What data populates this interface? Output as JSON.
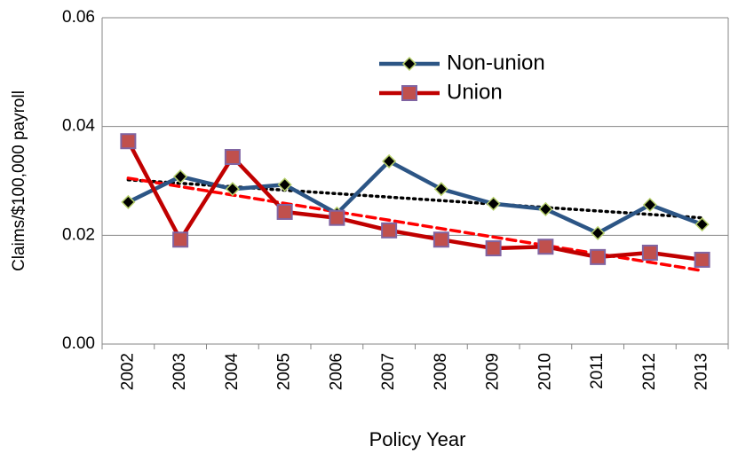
{
  "chart_data": {
    "type": "line",
    "x_label": "Policy Year",
    "y_label": "Claims/$100,000 payroll",
    "categories": [
      "2002",
      "2003",
      "2004",
      "2005",
      "2006",
      "2007",
      "2008",
      "2009",
      "2010",
      "2011",
      "2012",
      "2013"
    ],
    "series": [
      {
        "name": "Non-union",
        "color": "#2c5585",
        "marker": "diamond",
        "marker_fill": "#000000",
        "marker_stroke": "#b5cf6a",
        "values": [
          0.0261,
          0.0308,
          0.0285,
          0.0293,
          0.024,
          0.0336,
          0.0285,
          0.0258,
          0.0248,
          0.0204,
          0.0256,
          0.022
        ],
        "trend": [
          0.0302,
          0.0232
        ],
        "trend_color": "#000000",
        "trend_style": "dotted"
      },
      {
        "name": "Union",
        "color": "#c00000",
        "marker": "square",
        "marker_fill": "#c0504d",
        "marker_stroke": "#8064a2",
        "values": [
          0.0373,
          0.0192,
          0.0344,
          0.0243,
          0.0232,
          0.0209,
          0.0192,
          0.0176,
          0.0179,
          0.016,
          0.0168,
          0.0155
        ],
        "trend": [
          0.0305,
          0.0135
        ],
        "trend_color": "#ff0000",
        "trend_style": "dashed"
      }
    ],
    "ylim": [
      0,
      0.06
    ],
    "yticks": [
      {
        "value": 0,
        "label": "0.00"
      },
      {
        "value": 0.02,
        "label": "0.02"
      },
      {
        "value": 0.04,
        "label": "0.04"
      },
      {
        "value": 0.06,
        "label": "0.06"
      }
    ],
    "grid": true,
    "legend": "top-center"
  }
}
